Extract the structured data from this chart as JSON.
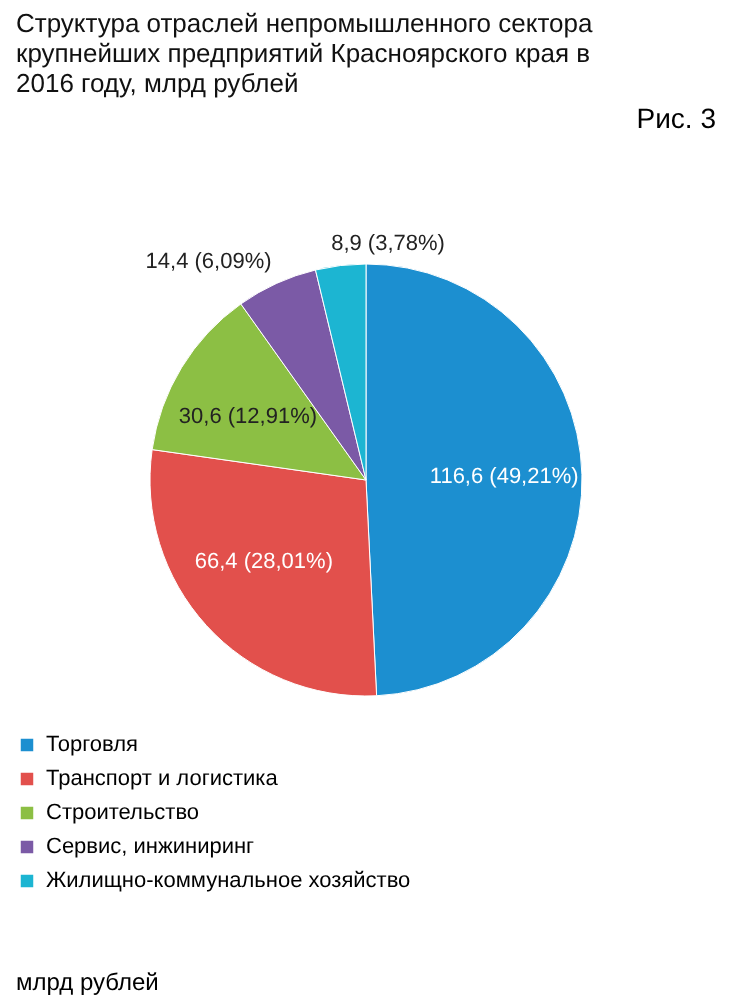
{
  "chart_data": {
    "type": "pie",
    "title": "Структура отраслей непромышленного сектора крупнейших предприятий Красноярского края в 2016 году, млрд рублей",
    "categories": [
      "Торговля",
      "Транспорт и логистика",
      "Строительство",
      "Сервис, инжиниринг",
      "Жилищно-коммунальное хозяйство"
    ],
    "values": [
      116.6,
      66.4,
      30.6,
      14.4,
      8.9
    ],
    "value_labels": [
      "116,6 (49,21%)",
      "66,4 (28,01%)",
      "30,6 (12,91%)",
      "14,4 (6,09%)",
      "8,9 (3,78%)"
    ],
    "colors": [
      "#1c8fd0",
      "#e2504c",
      "#8cbf44",
      "#7b5aa6",
      "#1cb5d2"
    ],
    "legend": "bottom",
    "annotations": [
      "Рис. 3",
      "млрд рублей"
    ]
  }
}
